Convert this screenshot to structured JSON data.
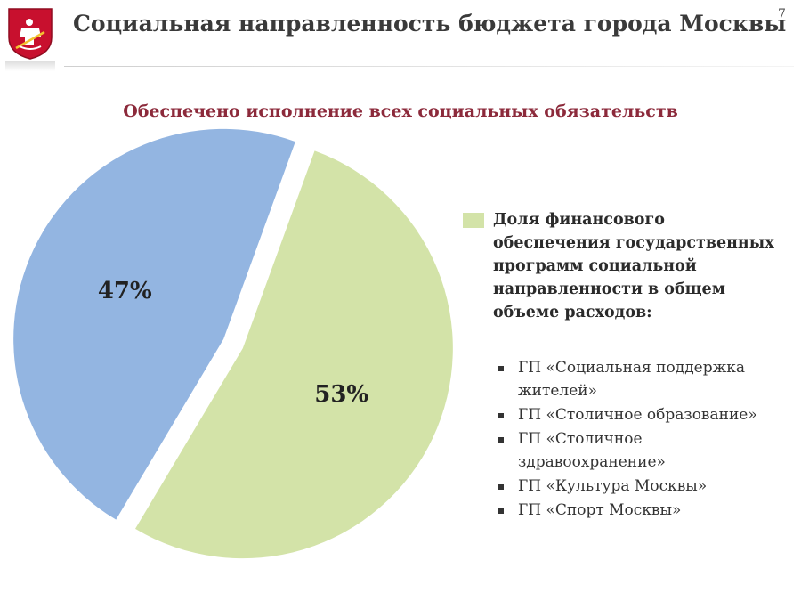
{
  "header": {
    "title": "Социальная направленность бюджета города Москвы",
    "page_number": "7",
    "logo_icon": "moscow-coat-of-arms-icon"
  },
  "subtitle": "Обеспечено исполнение всех социальных обязательств",
  "legend": {
    "label": "Доля финансового\nобеспечения государственных\nпрограмм социальной\nнаправленности в общем\nобъеме расходов:",
    "swatch_color": "#d3e3a8"
  },
  "programs": [
    "ГП «Социальная поддержка\nжителей»",
    "ГП «Столичное образование»",
    "ГП «Столичное\nздравоохранение»",
    "ГП «Культура Москвы»",
    "ГП «Спорт Москвы»"
  ],
  "chart_data": {
    "type": "pie",
    "slices": [
      {
        "value": 53,
        "label": "53%",
        "color": "#d3e3a8"
      },
      {
        "value": 47,
        "label": "47%",
        "color": "#93b5e1"
      }
    ]
  }
}
